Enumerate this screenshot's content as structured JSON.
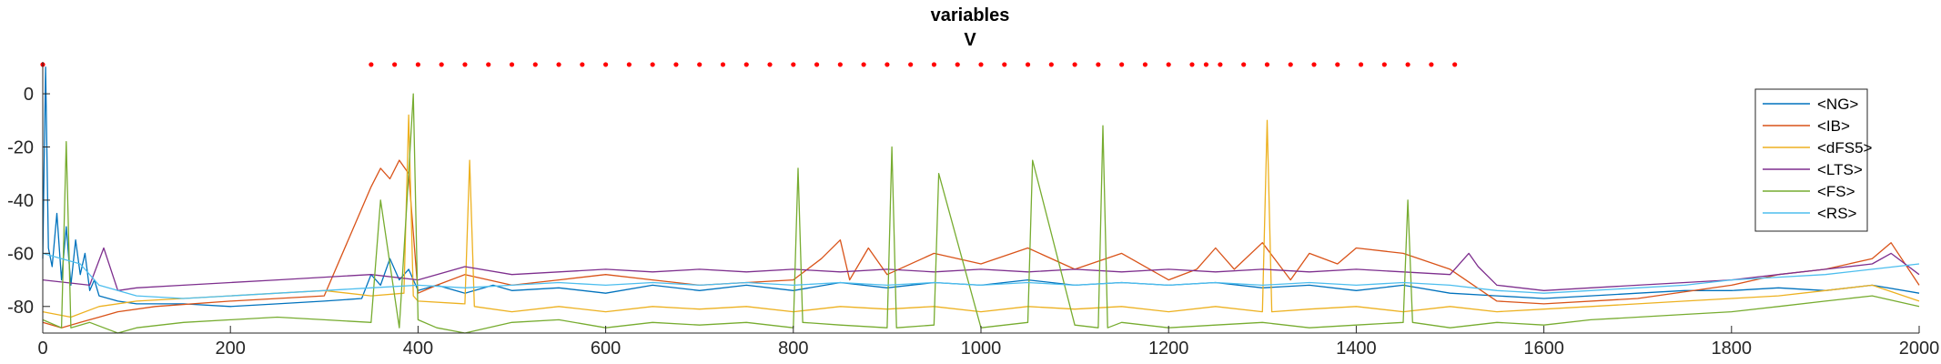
{
  "chart_data": {
    "type": "line",
    "title": [
      "variables",
      "V"
    ],
    "xlim": [
      0,
      2000
    ],
    "ylim": [
      -90,
      12
    ],
    "x_ticks": [
      0,
      200,
      400,
      600,
      800,
      1000,
      1200,
      1400,
      1600,
      1800,
      2000
    ],
    "y_ticks": [
      0,
      -20,
      -40,
      -60,
      -80
    ],
    "grid": false,
    "legend_position": "top-right",
    "marker_row": {
      "y": 11,
      "color": "#ff0000",
      "x": [
        0,
        350,
        375,
        400,
        425,
        450,
        475,
        500,
        525,
        550,
        575,
        600,
        625,
        650,
        675,
        700,
        725,
        750,
        775,
        800,
        825,
        850,
        875,
        900,
        925,
        950,
        975,
        1000,
        1025,
        1050,
        1075,
        1100,
        1125,
        1150,
        1175,
        1200,
        1225,
        1240,
        1255,
        1280,
        1305,
        1330,
        1355,
        1380,
        1405,
        1430,
        1455,
        1480,
        1505
      ]
    },
    "series": [
      {
        "name": "<NG>",
        "color": "#0072bd",
        "x": [
          0,
          3,
          6,
          10,
          15,
          20,
          25,
          30,
          35,
          40,
          45,
          50,
          55,
          60,
          70,
          80,
          100,
          150,
          200,
          250,
          300,
          340,
          350,
          360,
          370,
          380,
          390,
          400,
          420,
          450,
          480,
          500,
          550,
          600,
          650,
          700,
          750,
          800,
          850,
          900,
          950,
          1000,
          1050,
          1100,
          1150,
          1200,
          1250,
          1300,
          1350,
          1400,
          1450,
          1500,
          1550,
          1600,
          1650,
          1700,
          1750,
          1800,
          1850,
          1900,
          1950,
          2000
        ],
        "y": [
          -62,
          10,
          -58,
          -65,
          -45,
          -70,
          -50,
          -72,
          -55,
          -68,
          -60,
          -74,
          -70,
          -76,
          -77,
          -78,
          -79,
          -79,
          -80,
          -79,
          -78,
          -77,
          -68,
          -72,
          -62,
          -70,
          -66,
          -74,
          -72,
          -75,
          -72,
          -74,
          -73,
          -75,
          -72,
          -74,
          -72,
          -74,
          -71,
          -73,
          -71,
          -72,
          -70,
          -72,
          -71,
          -72,
          -71,
          -73,
          -72,
          -74,
          -72,
          -75,
          -76,
          -77,
          -76,
          -75,
          -74,
          -74,
          -73,
          -74,
          -72,
          -75
        ]
      },
      {
        "name": "<IB>",
        "color": "#d95319",
        "x": [
          0,
          20,
          40,
          60,
          80,
          120,
          200,
          300,
          350,
          360,
          370,
          380,
          390,
          400,
          420,
          450,
          500,
          550,
          600,
          650,
          700,
          800,
          830,
          850,
          860,
          880,
          900,
          950,
          1000,
          1050,
          1100,
          1150,
          1200,
          1230,
          1250,
          1270,
          1300,
          1330,
          1350,
          1380,
          1400,
          1450,
          1500,
          1550,
          1600,
          1700,
          1800,
          1850,
          1900,
          1950,
          1970,
          2000
        ],
        "y": [
          -86,
          -88,
          -86,
          -84,
          -82,
          -80,
          -78,
          -76,
          -35,
          -28,
          -32,
          -25,
          -30,
          -75,
          -72,
          -68,
          -72,
          -70,
          -68,
          -70,
          -72,
          -70,
          -62,
          -55,
          -70,
          -58,
          -68,
          -60,
          -64,
          -58,
          -66,
          -60,
          -70,
          -66,
          -58,
          -66,
          -56,
          -70,
          -60,
          -64,
          -58,
          -60,
          -66,
          -78,
          -79,
          -77,
          -72,
          -68,
          -66,
          -62,
          -56,
          -72
        ]
      },
      {
        "name": "<dFS5>",
        "color": "#edb120",
        "x": [
          0,
          30,
          60,
          100,
          150,
          200,
          250,
          300,
          350,
          385,
          390,
          395,
          400,
          450,
          455,
          460,
          500,
          550,
          600,
          650,
          700,
          750,
          800,
          850,
          900,
          950,
          1000,
          1050,
          1100,
          1150,
          1200,
          1250,
          1300,
          1305,
          1310,
          1350,
          1400,
          1450,
          1500,
          1550,
          1600,
          1650,
          1700,
          1750,
          1800,
          1850,
          1900,
          1950,
          2000
        ],
        "y": [
          -82,
          -84,
          -80,
          -78,
          -77,
          -76,
          -75,
          -74,
          -76,
          -75,
          -8,
          -76,
          -78,
          -79,
          -25,
          -80,
          -82,
          -80,
          -82,
          -80,
          -81,
          -80,
          -82,
          -80,
          -81,
          -80,
          -82,
          -80,
          -81,
          -80,
          -82,
          -80,
          -82,
          -10,
          -82,
          -81,
          -80,
          -82,
          -80,
          -82,
          -81,
          -80,
          -79,
          -78,
          -77,
          -76,
          -74,
          -72,
          -78
        ]
      },
      {
        "name": "<LTS>",
        "color": "#7e2f8e",
        "x": [
          0,
          50,
          65,
          80,
          100,
          150,
          200,
          250,
          300,
          350,
          400,
          450,
          500,
          550,
          600,
          650,
          700,
          750,
          800,
          850,
          900,
          950,
          1000,
          1050,
          1100,
          1150,
          1200,
          1250,
          1300,
          1350,
          1400,
          1450,
          1500,
          1520,
          1530,
          1550,
          1600,
          1650,
          1700,
          1750,
          1800,
          1850,
          1900,
          1950,
          1970,
          2000
        ],
        "y": [
          -70,
          -72,
          -58,
          -74,
          -73,
          -72,
          -71,
          -70,
          -69,
          -68,
          -70,
          -65,
          -68,
          -67,
          -66,
          -67,
          -66,
          -67,
          -66,
          -67,
          -66,
          -67,
          -66,
          -67,
          -66,
          -67,
          -66,
          -67,
          -66,
          -67,
          -66,
          -67,
          -68,
          -60,
          -65,
          -72,
          -74,
          -73,
          -72,
          -71,
          -70,
          -68,
          -66,
          -64,
          -60,
          -68
        ]
      },
      {
        "name": "<FS>",
        "color": "#77ac30",
        "x": [
          0,
          20,
          25,
          30,
          50,
          80,
          100,
          150,
          200,
          250,
          300,
          350,
          360,
          380,
          390,
          395,
          400,
          420,
          450,
          500,
          550,
          600,
          650,
          700,
          750,
          800,
          805,
          810,
          850,
          900,
          905,
          910,
          950,
          955,
          1000,
          1050,
          1055,
          1100,
          1125,
          1130,
          1135,
          1150,
          1200,
          1250,
          1300,
          1350,
          1400,
          1450,
          1455,
          1460,
          1500,
          1550,
          1600,
          1650,
          1700,
          1750,
          1800,
          1850,
          1900,
          1950,
          2000
        ],
        "y": [
          -85,
          -88,
          -18,
          -88,
          -86,
          -90,
          -88,
          -86,
          -85,
          -84,
          -85,
          -86,
          -40,
          -88,
          -30,
          0,
          -85,
          -88,
          -90,
          -86,
          -85,
          -88,
          -86,
          -87,
          -86,
          -88,
          -28,
          -86,
          -87,
          -88,
          -20,
          -88,
          -87,
          -30,
          -88,
          -86,
          -25,
          -87,
          -88,
          -12,
          -88,
          -86,
          -88,
          -87,
          -86,
          -88,
          -87,
          -86,
          -40,
          -86,
          -88,
          -86,
          -87,
          -85,
          -84,
          -83,
          -82,
          -80,
          -78,
          -76,
          -80
        ]
      },
      {
        "name": "<RS>",
        "color": "#4dbeee",
        "x": [
          0,
          20,
          40,
          60,
          100,
          150,
          200,
          250,
          300,
          350,
          400,
          450,
          500,
          550,
          600,
          650,
          700,
          750,
          800,
          850,
          900,
          950,
          1000,
          1050,
          1100,
          1150,
          1200,
          1250,
          1300,
          1350,
          1400,
          1450,
          1500,
          1550,
          1600,
          1650,
          1700,
          1750,
          1800,
          1850,
          1900,
          1950,
          2000
        ],
        "y": [
          -60,
          -62,
          -64,
          -72,
          -76,
          -77,
          -76,
          -75,
          -74,
          -73,
          -72,
          -73,
          -72,
          -71,
          -72,
          -71,
          -72,
          -71,
          -72,
          -71,
          -72,
          -71,
          -72,
          -71,
          -72,
          -71,
          -72,
          -71,
          -72,
          -71,
          -72,
          -71,
          -72,
          -74,
          -75,
          -74,
          -73,
          -72,
          -70,
          -69,
          -68,
          -66,
          -64
        ]
      }
    ]
  }
}
